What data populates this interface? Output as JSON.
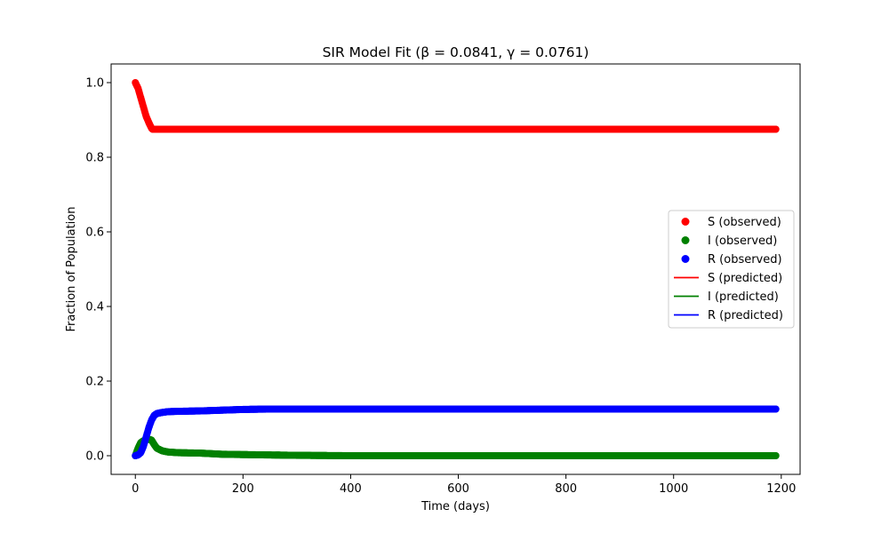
{
  "chart_data": {
    "type": "line",
    "title": "SIR Model Fit (β = 0.0841, γ = 0.0761)",
    "xlabel": "Time (days)",
    "ylabel": "Fraction of Population",
    "xlim": [
      -45,
      1235
    ],
    "ylim": [
      -0.05,
      1.05
    ],
    "x_ticks": [
      0,
      200,
      400,
      600,
      800,
      1000,
      1200
    ],
    "y_ticks": [
      0.0,
      0.2,
      0.4,
      0.6,
      0.8,
      1.0
    ],
    "x_tick_labels": [
      "0",
      "200",
      "400",
      "600",
      "800",
      "1000",
      "1200"
    ],
    "y_tick_labels": [
      "0.0",
      "0.2",
      "0.4",
      "0.6",
      "0.8",
      "1.0"
    ],
    "grid": false,
    "legend_position": "center-right",
    "x_range": [
      0,
      1190
    ],
    "series": [
      {
        "name": "S (observed)",
        "kind": "points",
        "color": "#ff0000",
        "curve": [
          [
            0,
            1.0
          ],
          [
            5,
            0.985
          ],
          [
            10,
            0.96
          ],
          [
            15,
            0.935
          ],
          [
            20,
            0.91
          ],
          [
            25,
            0.893
          ],
          [
            30,
            0.878
          ],
          [
            32,
            0.875
          ],
          [
            1190,
            0.875
          ]
        ]
      },
      {
        "name": "I (observed)",
        "kind": "points",
        "color": "#008000",
        "curve": [
          [
            0,
            0.0
          ],
          [
            5,
            0.02
          ],
          [
            10,
            0.035
          ],
          [
            15,
            0.04
          ],
          [
            20,
            0.043
          ],
          [
            25,
            0.044
          ],
          [
            30,
            0.042
          ],
          [
            35,
            0.03
          ],
          [
            40,
            0.02
          ],
          [
            50,
            0.013
          ],
          [
            60,
            0.01
          ],
          [
            80,
            0.008
          ],
          [
            120,
            0.007
          ],
          [
            160,
            0.004
          ],
          [
            200,
            0.003
          ],
          [
            300,
            0.001
          ],
          [
            400,
            0.0
          ],
          [
            1190,
            0.0
          ]
        ]
      },
      {
        "name": "R (observed)",
        "kind": "points",
        "color": "#0000ff",
        "curve": [
          [
            0,
            0.0
          ],
          [
            5,
            0.002
          ],
          [
            10,
            0.008
          ],
          [
            15,
            0.025
          ],
          [
            20,
            0.05
          ],
          [
            25,
            0.075
          ],
          [
            30,
            0.095
          ],
          [
            35,
            0.108
          ],
          [
            40,
            0.113
          ],
          [
            50,
            0.116
          ],
          [
            60,
            0.118
          ],
          [
            80,
            0.119
          ],
          [
            120,
            0.12
          ],
          [
            160,
            0.122
          ],
          [
            200,
            0.124
          ],
          [
            250,
            0.125
          ],
          [
            1190,
            0.125
          ]
        ]
      },
      {
        "name": "S (predicted)",
        "kind": "line",
        "color": "#ff0000",
        "curve": []
      },
      {
        "name": "I (predicted)",
        "kind": "line",
        "color": "#008000",
        "curve": []
      },
      {
        "name": "R (predicted)",
        "kind": "line",
        "color": "#0000ff",
        "curve": []
      }
    ]
  }
}
